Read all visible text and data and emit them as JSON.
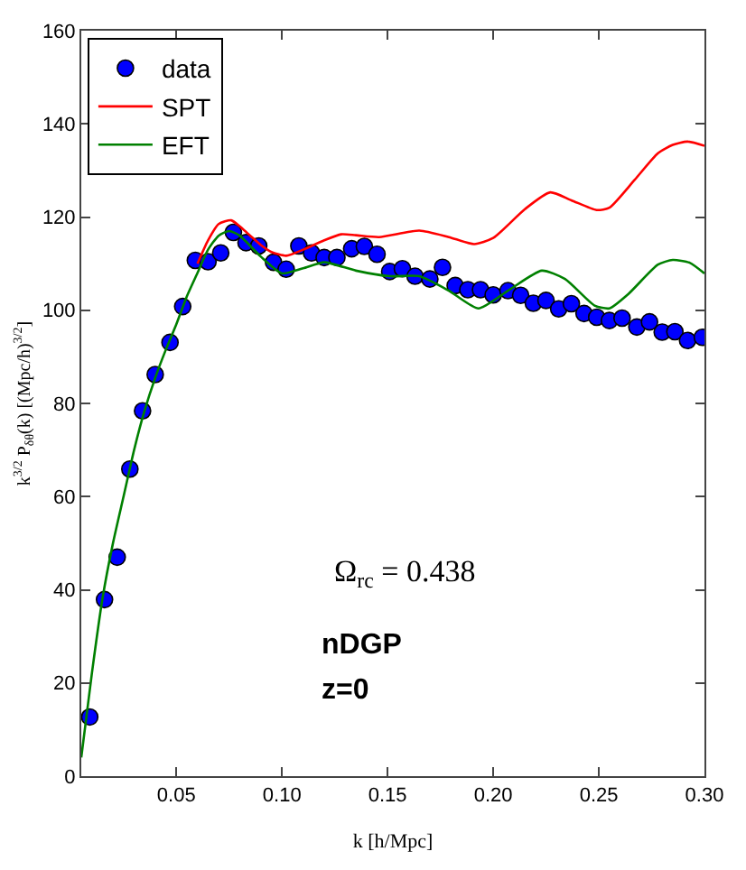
{
  "chart_data": {
    "type": "line",
    "xlabel": "k [h/Mpc]",
    "ylabel": "k$^{3/2}$ P$_{δθ}$(k) [(Mpc/h)$^{3/2}$]",
    "xlim": [
      0.005,
      0.3
    ],
    "xticks": [
      0.05,
      {
        "value": 0.1,
        "label": "0.10"
      },
      0.15,
      {
        "value": 0.2,
        "label": "0.20"
      },
      0.25,
      {
        "value": 0.3,
        "label": "0.30"
      }
    ],
    "ylim": [
      0,
      160
    ],
    "yticks": [
      0,
      20,
      40,
      60,
      80,
      100,
      120,
      140,
      160
    ],
    "legend": "top left",
    "annotations": [
      "Ω$_{rc}$ = 0.438",
      "nDGP",
      "z=0"
    ],
    "series": [
      {
        "name": "data",
        "type": "scatter",
        "marker": "circle",
        "color": "#0000ff",
        "x": [
          0.009,
          0.016,
          0.022,
          0.028,
          0.034,
          0.04,
          0.047,
          0.053,
          0.059,
          0.065,
          0.071,
          0.077,
          0.083,
          0.089,
          0.096,
          0.102,
          0.108,
          0.114,
          0.12,
          0.126,
          0.133,
          0.139,
          0.145,
          0.151,
          0.157,
          0.163,
          0.17,
          0.176,
          0.182,
          0.188,
          0.194,
          0.2,
          0.207,
          0.213,
          0.219,
          0.225,
          0.231,
          0.237,
          0.243,
          0.249,
          0.255,
          0.261,
          0.268,
          0.274,
          0.28,
          0.286,
          0.292,
          0.299
        ],
        "values": [
          12.7,
          37.9,
          47.0,
          65.9,
          78.4,
          86.2,
          93.1,
          100.8,
          110.7,
          110.4,
          112.3,
          116.7,
          114.5,
          113.8,
          110.3,
          108.8,
          113.8,
          112.3,
          111.3,
          111.3,
          113.2,
          113.7,
          112.0,
          108.3,
          108.9,
          107.3,
          106.7,
          109.2,
          105.3,
          104.4,
          104.4,
          103.3,
          104.2,
          103.2,
          101.5,
          102.1,
          100.3,
          101.4,
          99.3,
          98.5,
          97.8,
          98.3,
          96.4,
          97.5,
          95.3,
          95.4,
          93.5,
          94.2
        ]
      },
      {
        "name": "SPT",
        "line_style": "solid",
        "color": "#ff0000",
        "x": [
          0.06,
          0.065,
          0.07,
          0.076,
          0.08,
          0.085,
          0.09,
          0.095,
          0.102,
          0.11,
          0.12,
          0.128,
          0.135,
          0.146,
          0.165,
          0.179,
          0.191,
          0.2,
          0.215,
          0.227,
          0.237,
          0.249,
          0.255,
          0.267,
          0.278,
          0.285,
          0.292,
          0.3
        ],
        "values": [
          110,
          115,
          118.5,
          119.3,
          118,
          116,
          114,
          112.5,
          111.7,
          113,
          115,
          116.3,
          116.1,
          115.7,
          117.1,
          115.7,
          114.2,
          115.5,
          121.7,
          125.3,
          123.6,
          121.5,
          122,
          128,
          133.7,
          135.5,
          136.2,
          135.3
        ]
      },
      {
        "name": "EFT",
        "line_style": "solid",
        "color": "#008000",
        "x": [
          0.005,
          0.01,
          0.015,
          0.02,
          0.025,
          0.03,
          0.035,
          0.04,
          0.045,
          0.05,
          0.055,
          0.06,
          0.065,
          0.07,
          0.075,
          0.08,
          0.09,
          0.1,
          0.11,
          0.12,
          0.135,
          0.151,
          0.165,
          0.179,
          0.193,
          0.207,
          0.223,
          0.234,
          0.248,
          0.255,
          0.264,
          0.278,
          0.285,
          0.293,
          0.3
        ],
        "values": [
          4,
          22,
          38,
          50,
          60,
          70,
          78.5,
          85.5,
          91.5,
          97,
          103,
          108,
          113,
          116,
          117,
          116,
          111.5,
          107.9,
          109,
          110.3,
          108.5,
          107.3,
          107.3,
          104.2,
          100.4,
          104.2,
          108.5,
          106.7,
          101.0,
          100.4,
          103.5,
          109.8,
          110.8,
          110.2,
          107.9
        ]
      }
    ]
  }
}
